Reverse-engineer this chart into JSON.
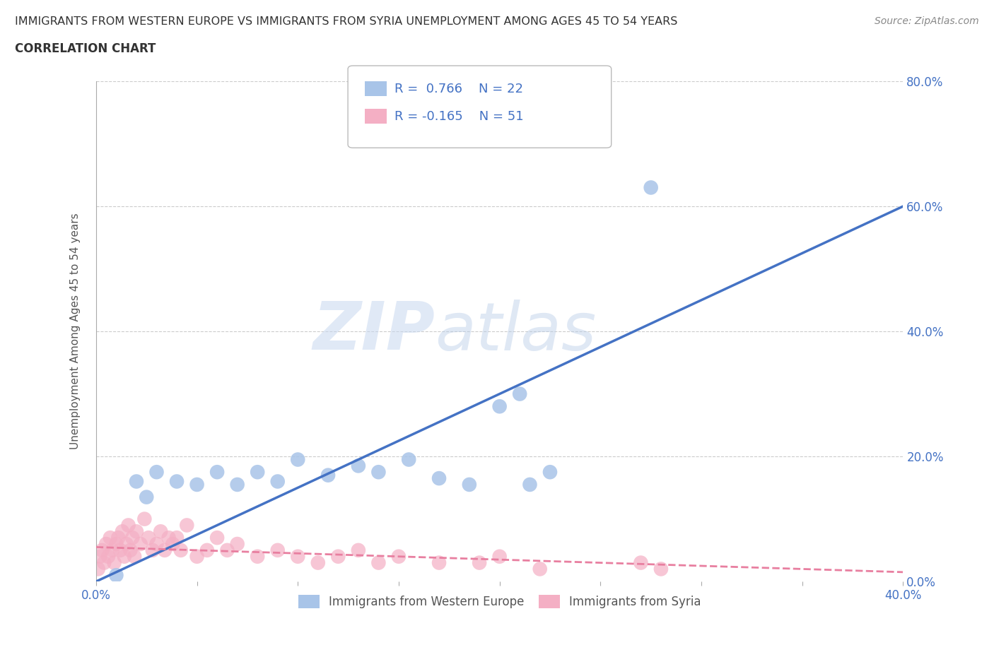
{
  "title_line1": "IMMIGRANTS FROM WESTERN EUROPE VS IMMIGRANTS FROM SYRIA UNEMPLOYMENT AMONG AGES 45 TO 54 YEARS",
  "title_line2": "CORRELATION CHART",
  "source": "Source: ZipAtlas.com",
  "ylabel": "Unemployment Among Ages 45 to 54 years",
  "xlim": [
    0.0,
    0.4
  ],
  "ylim": [
    0.0,
    0.8
  ],
  "xticks": [
    0.0,
    0.05,
    0.1,
    0.15,
    0.2,
    0.25,
    0.3,
    0.35,
    0.4
  ],
  "yticks": [
    0.0,
    0.2,
    0.4,
    0.6,
    0.8
  ],
  "ytick_labels": [
    "0.0%",
    "20.0%",
    "40.0%",
    "60.0%",
    "80.0%"
  ],
  "watermark_zip": "ZIP",
  "watermark_atlas": "atlas",
  "blue_R": 0.766,
  "blue_N": 22,
  "pink_R": -0.165,
  "pink_N": 51,
  "blue_color": "#a8c4e8",
  "pink_color": "#f4afc4",
  "blue_line_color": "#4472c4",
  "pink_line_color": "#e87fa0",
  "blue_scatter_x": [
    0.01,
    0.02,
    0.025,
    0.03,
    0.04,
    0.05,
    0.06,
    0.07,
    0.08,
    0.09,
    0.1,
    0.115,
    0.13,
    0.14,
    0.155,
    0.17,
    0.185,
    0.2,
    0.21,
    0.215,
    0.225,
    0.275
  ],
  "blue_scatter_y": [
    0.01,
    0.16,
    0.135,
    0.175,
    0.16,
    0.155,
    0.175,
    0.155,
    0.175,
    0.16,
    0.195,
    0.17,
    0.185,
    0.175,
    0.195,
    0.165,
    0.155,
    0.28,
    0.3,
    0.155,
    0.175,
    0.63
  ],
  "pink_scatter_x": [
    0.001,
    0.002,
    0.003,
    0.004,
    0.005,
    0.006,
    0.007,
    0.008,
    0.009,
    0.01,
    0.011,
    0.012,
    0.013,
    0.014,
    0.015,
    0.016,
    0.017,
    0.018,
    0.019,
    0.02,
    0.022,
    0.024,
    0.026,
    0.028,
    0.03,
    0.032,
    0.034,
    0.036,
    0.038,
    0.04,
    0.042,
    0.045,
    0.05,
    0.055,
    0.06,
    0.065,
    0.07,
    0.08,
    0.09,
    0.1,
    0.11,
    0.12,
    0.13,
    0.14,
    0.15,
    0.17,
    0.19,
    0.2,
    0.22,
    0.27,
    0.28
  ],
  "pink_scatter_y": [
    0.02,
    0.04,
    0.05,
    0.03,
    0.06,
    0.04,
    0.07,
    0.05,
    0.03,
    0.06,
    0.07,
    0.05,
    0.08,
    0.04,
    0.06,
    0.09,
    0.05,
    0.07,
    0.04,
    0.08,
    0.06,
    0.1,
    0.07,
    0.05,
    0.06,
    0.08,
    0.05,
    0.07,
    0.06,
    0.07,
    0.05,
    0.09,
    0.04,
    0.05,
    0.07,
    0.05,
    0.06,
    0.04,
    0.05,
    0.04,
    0.03,
    0.04,
    0.05,
    0.03,
    0.04,
    0.03,
    0.03,
    0.04,
    0.02,
    0.03,
    0.02
  ],
  "blue_trend_x": [
    0.0,
    0.4
  ],
  "blue_trend_y": [
    0.0,
    0.6
  ],
  "pink_trend_x": [
    0.0,
    0.4
  ],
  "pink_trend_y": [
    0.055,
    0.015
  ],
  "legend_label_blue": "Immigrants from Western Europe",
  "legend_label_pink": "Immigrants from Syria",
  "background_color": "#ffffff",
  "grid_color": "#cccccc",
  "axis_color": "#aaaaaa",
  "title_color": "#333333",
  "label_color": "#555555",
  "tick_color": "#4472c4",
  "source_color": "#888888"
}
